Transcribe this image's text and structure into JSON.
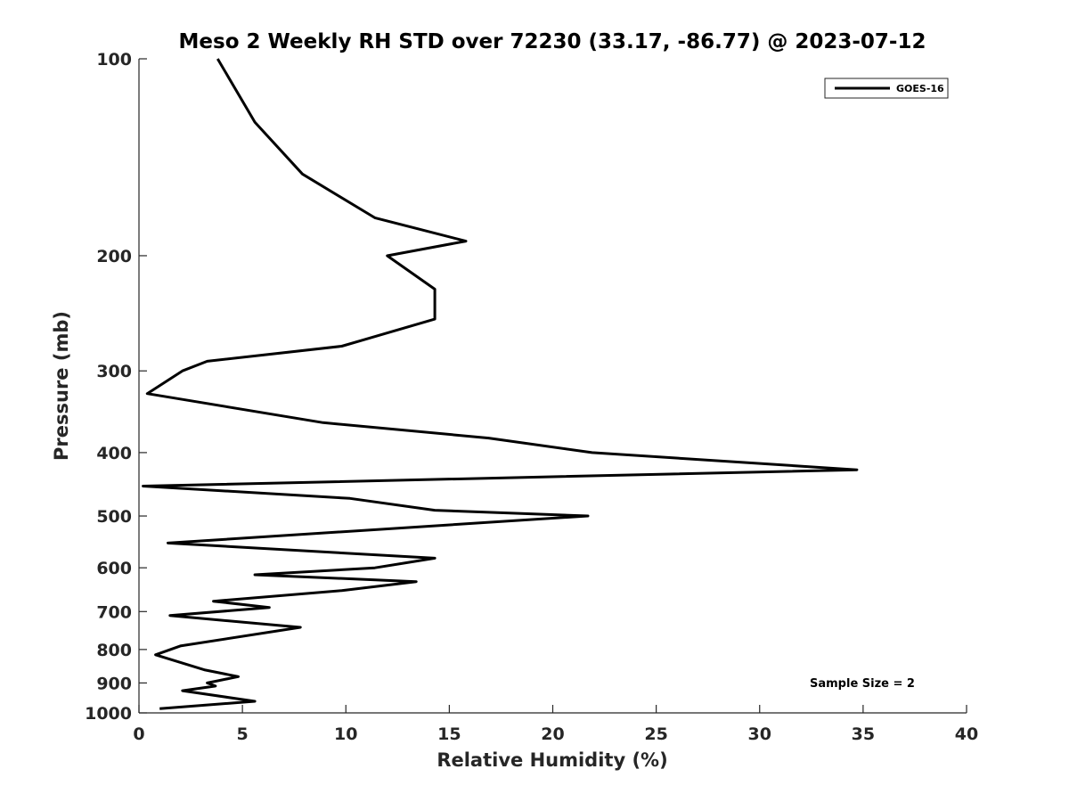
{
  "chart_data": {
    "type": "line",
    "title": "Meso 2 Weekly RH STD over 72230 (33.17, -86.77) @ 2023-07-12",
    "xlabel": "Relative Humidity (%)",
    "ylabel": "Pressure (mb)",
    "xlim": [
      0,
      40
    ],
    "ylim": [
      100,
      1000
    ],
    "yscale": "log",
    "y_reversed": true,
    "grid": false,
    "x_ticks": [
      0,
      5,
      10,
      15,
      20,
      25,
      30,
      35,
      40
    ],
    "y_ticks": [
      100,
      200,
      300,
      400,
      500,
      600,
      700,
      800,
      900,
      1000
    ],
    "legend_position": "top-right",
    "series": [
      {
        "name": "GOES-16",
        "color": "#000000",
        "points": [
          {
            "rh": 3.8,
            "p": 100
          },
          {
            "rh": 5.6,
            "p": 125
          },
          {
            "rh": 7.9,
            "p": 150
          },
          {
            "rh": 11.4,
            "p": 175
          },
          {
            "rh": 15.8,
            "p": 190
          },
          {
            "rh": 12.0,
            "p": 200
          },
          {
            "rh": 14.3,
            "p": 225
          },
          {
            "rh": 14.3,
            "p": 250
          },
          {
            "rh": 9.8,
            "p": 275
          },
          {
            "rh": 3.3,
            "p": 290
          },
          {
            "rh": 2.1,
            "p": 300
          },
          {
            "rh": 0.4,
            "p": 325
          },
          {
            "rh": 8.9,
            "p": 360
          },
          {
            "rh": 16.9,
            "p": 380
          },
          {
            "rh": 21.9,
            "p": 400
          },
          {
            "rh": 34.7,
            "p": 425
          },
          {
            "rh": 0.2,
            "p": 450
          },
          {
            "rh": 10.2,
            "p": 470
          },
          {
            "rh": 14.3,
            "p": 490
          },
          {
            "rh": 21.7,
            "p": 500
          },
          {
            "rh": 1.4,
            "p": 550
          },
          {
            "rh": 14.3,
            "p": 580
          },
          {
            "rh": 11.4,
            "p": 600
          },
          {
            "rh": 5.6,
            "p": 615
          },
          {
            "rh": 13.4,
            "p": 630
          },
          {
            "rh": 9.8,
            "p": 650
          },
          {
            "rh": 3.6,
            "p": 675
          },
          {
            "rh": 6.3,
            "p": 690
          },
          {
            "rh": 1.5,
            "p": 710
          },
          {
            "rh": 7.8,
            "p": 740
          },
          {
            "rh": 2.0,
            "p": 790
          },
          {
            "rh": 0.8,
            "p": 815
          },
          {
            "rh": 3.2,
            "p": 860
          },
          {
            "rh": 4.8,
            "p": 880
          },
          {
            "rh": 3.3,
            "p": 900
          },
          {
            "rh": 3.7,
            "p": 910
          },
          {
            "rh": 2.1,
            "p": 925
          },
          {
            "rh": 5.6,
            "p": 960
          },
          {
            "rh": 1.0,
            "p": 985
          }
        ]
      }
    ],
    "annotation": "Sample Size = 2"
  }
}
